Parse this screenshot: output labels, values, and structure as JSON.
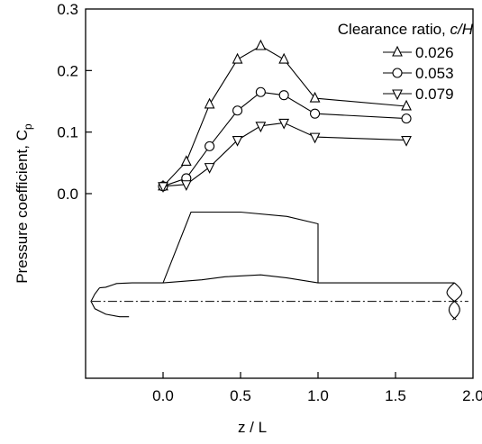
{
  "chart_data": {
    "type": "line",
    "xlabel": "z / L",
    "ylabel": "Pressure coefficient, C",
    "ylabel_subscript": "p",
    "xlim": [
      -0.5,
      2.0
    ],
    "ylim": [
      -0.3,
      0.3
    ],
    "x_ticks": [
      0.0,
      0.5,
      1.0,
      1.5,
      2.0
    ],
    "x_tick_labels": [
      "0.0",
      "0.5",
      "1.0",
      "1.5",
      "2.0"
    ],
    "y_ticks": [
      0.0,
      0.1,
      0.2,
      0.3
    ],
    "y_tick_labels": [
      "0.0",
      "0.1",
      "0.2",
      "0.3"
    ],
    "grid": false,
    "legend": {
      "title": "Clearance ratio, ",
      "title_italic": "c/H",
      "position": "top-right"
    },
    "series": [
      {
        "name": "0.026",
        "marker": "triangle-up",
        "x": [
          0.0,
          0.15,
          0.3,
          0.48,
          0.63,
          0.78,
          0.98,
          1.57
        ],
        "y": [
          0.012,
          0.052,
          0.145,
          0.218,
          0.24,
          0.218,
          0.155,
          0.142
        ]
      },
      {
        "name": "0.053",
        "marker": "circle",
        "x": [
          0.0,
          0.15,
          0.3,
          0.48,
          0.63,
          0.78,
          0.98,
          1.57
        ],
        "y": [
          0.012,
          0.025,
          0.077,
          0.135,
          0.165,
          0.16,
          0.13,
          0.122
        ]
      },
      {
        "name": "0.079",
        "marker": "triangle-down",
        "x": [
          0.0,
          0.15,
          0.3,
          0.48,
          0.63,
          0.78,
          0.98,
          1.57
        ],
        "y": [
          0.012,
          0.015,
          0.043,
          0.087,
          0.11,
          0.115,
          0.092,
          0.087
        ]
      }
    ],
    "inset_outline": {
      "hub_profile": [
        [
          -0.41,
          -0.153
        ],
        [
          -0.37,
          -0.152
        ],
        [
          -0.3,
          -0.146
        ],
        [
          -0.2,
          -0.145
        ],
        [
          0.0,
          -0.145
        ],
        [
          0.25,
          -0.14
        ],
        [
          0.4,
          -0.135
        ],
        [
          0.63,
          -0.132
        ],
        [
          0.8,
          -0.137
        ],
        [
          1.0,
          -0.145
        ],
        [
          1.88,
          -0.145
        ]
      ],
      "hub_nose": [
        [
          -0.41,
          -0.153
        ],
        [
          -0.44,
          -0.163
        ],
        [
          -0.465,
          -0.175
        ],
        [
          -0.44,
          -0.187
        ],
        [
          -0.37,
          -0.196
        ],
        [
          -0.28,
          -0.2
        ],
        [
          -0.22,
          -0.2
        ]
      ],
      "blade": [
        [
          0.0,
          -0.145
        ],
        [
          0.18,
          -0.03
        ],
        [
          0.5,
          -0.03
        ],
        [
          0.8,
          -0.037
        ],
        [
          1.0,
          -0.049
        ],
        [
          1.0,
          -0.145
        ]
      ],
      "centerline_y": -0.175,
      "centerline_x": [
        -0.46,
        1.97
      ],
      "tail_cut_x": 1.88
    }
  }
}
